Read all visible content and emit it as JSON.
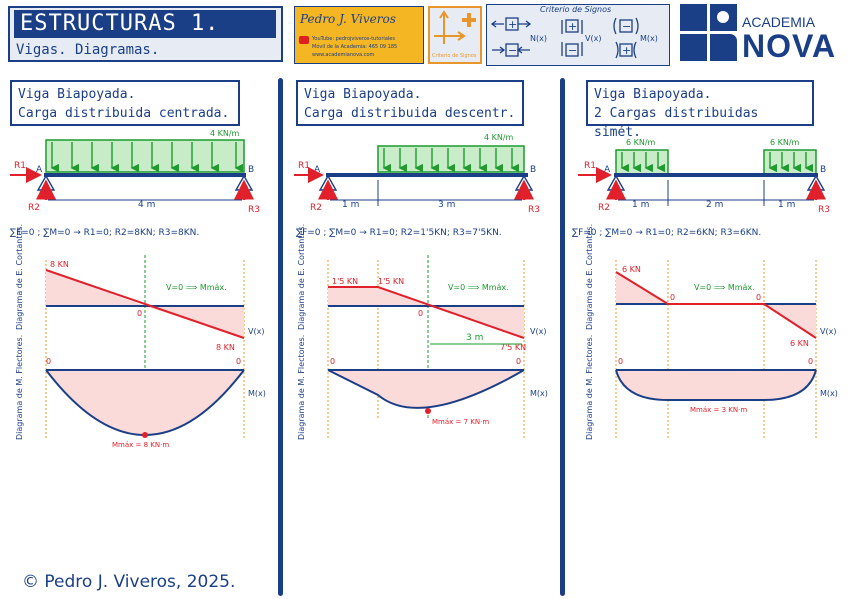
{
  "header": {
    "title": "ESTRUCTURAS 1.",
    "subtitle": "Vigas. Diagramas.",
    "author_signature": "Pedro J. Viveros",
    "author_lines": [
      "YouTube: pedrojviveros-tutoriales",
      "Móvil de la Academia: 465 09 185",
      "www.academianova.com"
    ],
    "icon_label": "Criterio de Signos",
    "criteria_title": "Criterio de Signos",
    "criteria_labels": [
      "N(x)",
      "V(x)",
      "M(x)"
    ],
    "brand_small": "ACADEMIA",
    "brand_big": "NOVA",
    "colors": {
      "primary": "#1b3f86",
      "red": "#e0202a",
      "green": "#1e9a2e",
      "fill_pink": "#fbdada",
      "orange": "#f4b623"
    }
  },
  "panels": [
    {
      "title_line1": "Viga Biapoyada.",
      "title_line2": "Carga distribuida centrada.",
      "load_label": "4 KN/m",
      "node_a": "A",
      "node_b": "B",
      "reaction_labels": [
        "R1",
        "R2",
        "R3"
      ],
      "dims": [
        "4 m"
      ],
      "equation": "∑F=0 ; ∑M=0 → R1=0; R2=8KN; R3=8KN.",
      "shear_axis_label": "Diagrama de E. Cortantes.",
      "shear_values": [
        "8 KN",
        "0",
        "8 KN"
      ],
      "shear_note": "V=0 ⟹ Mmáx.",
      "moment_axis_label": "Diagrama de M. Flectores.",
      "moment_values": [
        "0",
        "0"
      ],
      "moment_max": "Mmáx = 8 KN·m",
      "sign_v": "V(x)",
      "sign_m": "M(x)"
    },
    {
      "title_line1": "Viga Biapoyada.",
      "title_line2": "Carga distribuida descentr.",
      "load_label": "4 KN/m",
      "node_a": "A",
      "node_b": "B",
      "reaction_labels": [
        "R1",
        "R2",
        "R3"
      ],
      "dims": [
        "1 m",
        "3 m"
      ],
      "equation": "∑F=0 ; ∑M=0 → R1=0; R2=1'5KN; R3=7'5KN.",
      "shear_axis_label": "Diagrama de E. Cortantes.",
      "shear_values": [
        "1'5 KN",
        "1'5 KN",
        "0",
        "7'5 KN"
      ],
      "shear_note": "V=0 ⟹ Mmáx.",
      "shear_dim": "3 m",
      "moment_axis_label": "Diagrama de M. Flectores.",
      "moment_values": [
        "0",
        "0"
      ],
      "moment_max": "Mmáx = 7 KN·m",
      "sign_v": "V(x)",
      "sign_m": "M(x)"
    },
    {
      "title_line1": "Viga Biapoyada.",
      "title_line2": "2 Cargas distribuidas simét.",
      "load_labels": [
        "6 KN/m",
        "6 KN/m"
      ],
      "node_a": "A",
      "node_b": "B",
      "reaction_labels": [
        "R1",
        "R2",
        "R3"
      ],
      "dims": [
        "1 m",
        "2 m",
        "1 m"
      ],
      "equation": "∑F=0 ; ∑M=0 → R1=0; R2=6KN; R3=6KN.",
      "shear_axis_label": "Diagrama de E. Cortantes.",
      "shear_values": [
        "6 KN",
        "0",
        "0",
        "6 KN"
      ],
      "shear_note": "V=0 ⟹ Mmáx.",
      "moment_axis_label": "Diagrama de M. Flectores.",
      "moment_values": [
        "0",
        "0"
      ],
      "moment_max": "Mmáx = 3 KN·m",
      "sign_v": "V(x)",
      "sign_m": "M(x)"
    }
  ],
  "footer": {
    "copyright": "© Pedro J. Viveros, 2025."
  }
}
